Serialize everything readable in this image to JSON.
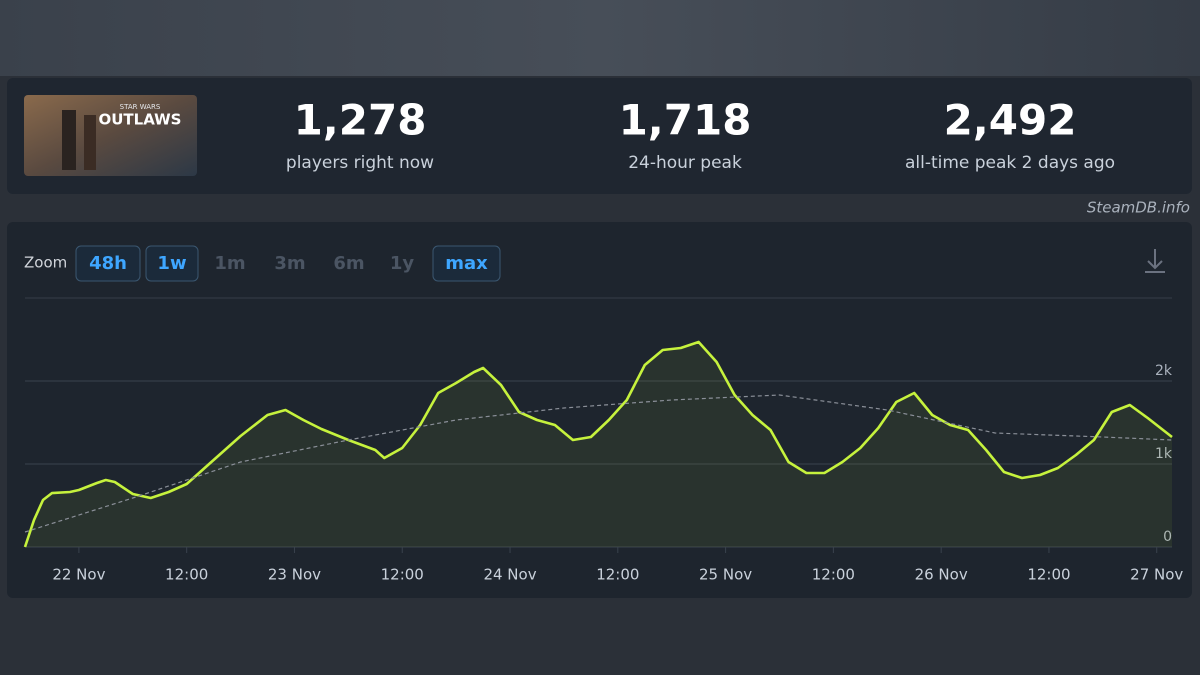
{
  "game": {
    "logo_small": "STAR WARS",
    "logo": "OUTLAWS"
  },
  "stats": [
    {
      "value": "1,278",
      "label": "players right now"
    },
    {
      "value": "1,718",
      "label": "24-hour peak"
    },
    {
      "value": "2,492",
      "label": "all-time peak 2 days ago"
    }
  ],
  "credit": "SteamDB.info",
  "zoom": {
    "label": "Zoom",
    "options": [
      {
        "label": "48h",
        "active": true
      },
      {
        "label": "1w",
        "active": true
      },
      {
        "label": "1m",
        "active": false
      },
      {
        "label": "3m",
        "active": false
      },
      {
        "label": "6m",
        "active": false
      },
      {
        "label": "1y",
        "active": false
      },
      {
        "label": "max",
        "active": true
      }
    ]
  },
  "chart_data": {
    "type": "line",
    "xlim": [
      -6,
      121.7
    ],
    "xticks": [
      {
        "value": 0,
        "label": "22 Nov"
      },
      {
        "value": 12,
        "label": "12:00"
      },
      {
        "value": 24,
        "label": "23 Nov"
      },
      {
        "value": 36,
        "label": "12:00"
      },
      {
        "value": 48,
        "label": "24 Nov"
      },
      {
        "value": 60,
        "label": "12:00"
      },
      {
        "value": 72,
        "label": "25 Nov"
      },
      {
        "value": 84,
        "label": "12:00"
      },
      {
        "value": 96,
        "label": "26 Nov"
      },
      {
        "value": 108,
        "label": "12:00"
      },
      {
        "value": 120,
        "label": "27 Nov"
      }
    ],
    "ylim": [
      0,
      3000
    ],
    "yticks": [
      0,
      {
        "value": 1000,
        "label": "1k"
      },
      {
        "value": 2000,
        "label": "2k"
      }
    ],
    "grid": true,
    "series": [
      {
        "color": "#c6f23d",
        "x": [
          -6,
          -5,
          -4,
          -3,
          -1,
          0,
          2,
          3,
          4,
          6,
          8,
          10,
          12,
          15,
          18,
          21,
          23,
          25,
          27,
          30,
          33,
          34,
          36,
          38,
          40,
          42,
          44,
          45,
          47,
          49,
          51,
          53,
          55,
          57,
          59,
          61,
          63,
          65,
          67,
          69,
          71,
          73,
          75,
          77,
          79,
          81,
          83,
          85,
          87,
          89,
          91,
          93,
          95,
          97,
          99,
          101,
          103,
          105,
          107,
          109,
          111,
          113,
          115,
          117,
          119,
          121.7
        ],
        "values": [
          0,
          325,
          566,
          650,
          663,
          687,
          771,
          807,
          783,
          639,
          590,
          663,
          759,
          1048,
          1337,
          1590,
          1650,
          1530,
          1422,
          1289,
          1169,
          1072,
          1193,
          1470,
          1855,
          1976,
          2108,
          2157,
          1952,
          1627,
          1530,
          1470,
          1289,
          1325,
          1530,
          1771,
          2193,
          2373,
          2398,
          2470,
          2229,
          1831,
          1590,
          1410,
          1024,
          892,
          892,
          1024,
          1193,
          1434,
          1747,
          1855,
          1590,
          1470,
          1410,
          1169,
          904,
          831,
          867,
          952,
          1108,
          1289,
          1627,
          1711,
          1554,
          1325
        ]
      },
      {
        "color": "#8a8f98",
        "dashed": true,
        "x": [
          -6,
          6,
          18,
          30,
          42,
          54,
          66,
          78,
          90,
          102,
          114,
          121.7
        ],
        "values": [
          181,
          590,
          1024,
          1289,
          1530,
          1675,
          1771,
          1831,
          1650,
          1373,
          1325,
          1289
        ]
      }
    ]
  }
}
